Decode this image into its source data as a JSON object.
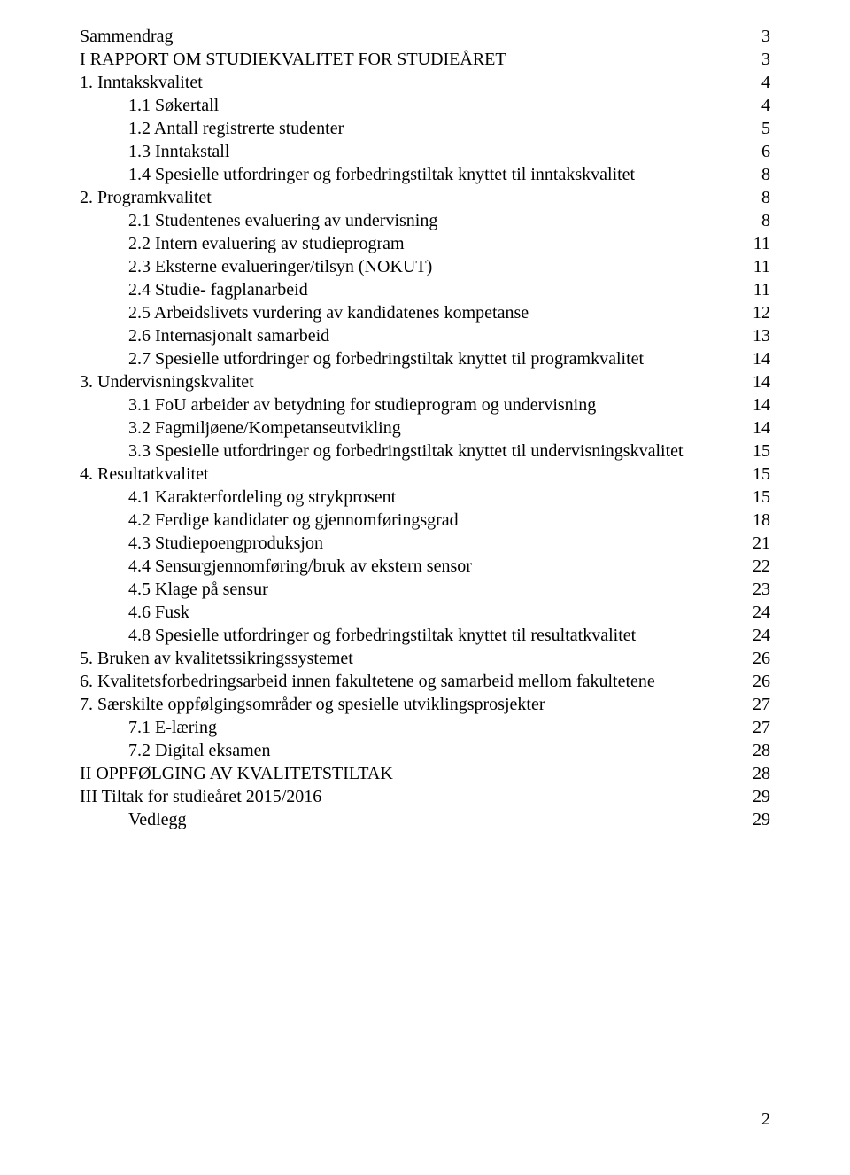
{
  "font_family": "Times New Roman, Times, serif",
  "font_size_pt": 15,
  "text_color": "#000000",
  "background_color": "#ffffff",
  "page_number": "2",
  "toc": [
    {
      "label": "Sammendrag",
      "page": "3",
      "indent": 0
    },
    {
      "label": "I RAPPORT OM STUDIEKVALITET FOR STUDIEÅRET",
      "page": "3",
      "indent": 0
    },
    {
      "label": "1.  Inntakskvalitet",
      "page": "4",
      "indent": 0
    },
    {
      "label": "1.1 Søkertall",
      "page": "4",
      "indent": 1
    },
    {
      "label": "1.2 Antall registrerte studenter",
      "page": "5",
      "indent": 1
    },
    {
      "label": "1.3 Inntakstall",
      "page": "6",
      "indent": 1
    },
    {
      "label": "1.4 Spesielle utfordringer og forbedringstiltak knyttet til inntakskvalitet",
      "page": "8",
      "indent": 1
    },
    {
      "label": "2.  Programkvalitet",
      "page": "8",
      "indent": 0
    },
    {
      "label": "2.1 Studentenes evaluering av undervisning",
      "page": "8",
      "indent": 1
    },
    {
      "label": "2.2 Intern evaluering av studieprogram",
      "page": "11",
      "indent": 1
    },
    {
      "label": "2.3 Eksterne evalueringer/tilsyn (NOKUT)",
      "page": "11",
      "indent": 1
    },
    {
      "label": "2.4 Studie- fagplanarbeid",
      "page": "11",
      "indent": 1
    },
    {
      "label": "2.5 Arbeidslivets vurdering av kandidatenes kompetanse",
      "page": "12",
      "indent": 1
    },
    {
      "label": "2.6 Internasjonalt samarbeid",
      "page": "13",
      "indent": 1
    },
    {
      "label": "2.7 Spesielle utfordringer og forbedringstiltak knyttet til programkvalitet",
      "page": "14",
      "indent": 1
    },
    {
      "label": "3. Undervisningskvalitet",
      "page": "14",
      "indent": 0
    },
    {
      "label": "3.1 FoU arbeider av betydning for studieprogram og undervisning",
      "page": "14",
      "indent": 1
    },
    {
      "label": "3.2 Fagmiljøene/Kompetanseutvikling",
      "page": "14",
      "indent": 1
    },
    {
      "label": "3.3 Spesielle utfordringer og forbedringstiltak knyttet til undervisningskvalitet",
      "page": "15",
      "indent": 1
    },
    {
      "label": "4. Resultatkvalitet",
      "page": "15",
      "indent": 0
    },
    {
      "label": "4.1 Karakterfordeling og strykprosent",
      "page": "15",
      "indent": 1
    },
    {
      "label": "4.2 Ferdige kandidater og gjennomføringsgrad",
      "page": "18",
      "indent": 1
    },
    {
      "label": "4.3 Studiepoengproduksjon",
      "page": "21",
      "indent": 1
    },
    {
      "label": "4.4 Sensurgjennomføring/bruk av ekstern sensor",
      "page": "22",
      "indent": 1
    },
    {
      "label": "4.5 Klage på sensur",
      "page": "23",
      "indent": 1
    },
    {
      "label": "4.6 Fusk",
      "page": "24",
      "indent": 1
    },
    {
      "label": "4.8 Spesielle utfordringer og forbedringstiltak knyttet til resultatkvalitet",
      "page": "24",
      "indent": 1
    },
    {
      "label": "5. Bruken av kvalitetssikringssystemet",
      "page": "26",
      "indent": 0
    },
    {
      "label": "6. Kvalitetsforbedringsarbeid innen fakultetene og samarbeid mellom fakultetene",
      "page": "26",
      "indent": 0
    },
    {
      "label": "7. Særskilte oppfølgingsområder og spesielle utviklingsprosjekter",
      "page": "27",
      "indent": 0
    },
    {
      "label": "7.1 E-læring",
      "page": "27",
      "indent": 1
    },
    {
      "label": "7.2 Digital eksamen",
      "page": "28",
      "indent": 1
    },
    {
      "label": "II OPPFØLGING AV KVALITETSTILTAK",
      "page": "28",
      "indent": 0
    },
    {
      "label": "III Tiltak for studieåret 2015/2016",
      "page": "29",
      "indent": 0
    },
    {
      "label": "Vedlegg",
      "page": "29",
      "indent": 1
    }
  ]
}
